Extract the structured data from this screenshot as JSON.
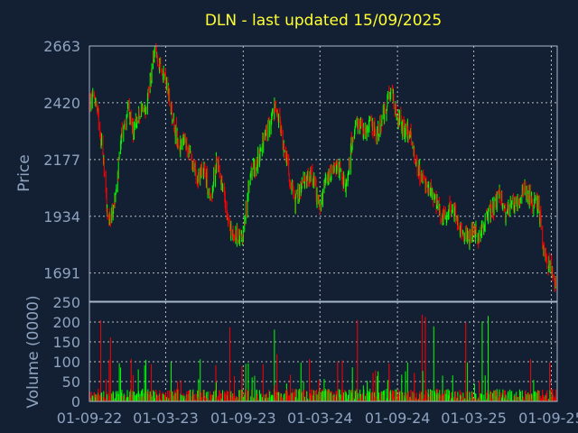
{
  "chart_data": [
    {
      "type": "candlestick",
      "title": "DLN - last updated 15/09/2025",
      "ylabel": "Price",
      "xlabel": "",
      "ylim": [
        1570,
        2663
      ],
      "yticks": [
        1691,
        1934,
        2177,
        2420,
        2663
      ],
      "xticks": [
        "01-09-22",
        "01-03-23",
        "01-09-23",
        "01-03-24",
        "01-09-24",
        "01-03-25",
        "01-09-25"
      ],
      "x_range": [
        "2022-09-01",
        "2025-09-15"
      ],
      "grid": true,
      "colors": {
        "up": "#00ff00",
        "down": "#ff0000",
        "grid": "#ffffff",
        "axis_text": "#8fa3bf",
        "title": "#ffff33",
        "background": "#132033"
      },
      "close_series": {
        "dates": [
          "2022-09-01",
          "2022-09-15",
          "2022-10-01",
          "2022-10-15",
          "2022-11-01",
          "2022-11-15",
          "2022-12-01",
          "2022-12-15",
          "2023-01-01",
          "2023-01-15",
          "2023-02-01",
          "2023-02-15",
          "2023-03-01",
          "2023-03-15",
          "2023-04-01",
          "2023-04-15",
          "2023-05-01",
          "2023-05-15",
          "2023-06-01",
          "2023-06-15",
          "2023-07-01",
          "2023-07-15",
          "2023-08-01",
          "2023-08-15",
          "2023-09-01",
          "2023-09-15",
          "2023-10-01",
          "2023-10-15",
          "2023-11-01",
          "2023-11-15",
          "2023-12-01",
          "2023-12-15",
          "2024-01-01",
          "2024-01-15",
          "2024-02-01",
          "2024-02-15",
          "2024-03-01",
          "2024-03-15",
          "2024-04-01",
          "2024-04-15",
          "2024-05-01",
          "2024-05-15",
          "2024-06-01",
          "2024-06-15",
          "2024-07-01",
          "2024-07-15",
          "2024-08-01",
          "2024-08-15",
          "2024-09-01",
          "2024-09-15",
          "2024-10-01",
          "2024-10-15",
          "2024-11-01",
          "2024-11-15",
          "2024-12-01",
          "2024-12-15",
          "2025-01-01",
          "2025-01-15",
          "2025-02-01",
          "2025-02-15",
          "2025-03-01",
          "2025-03-15",
          "2025-04-01",
          "2025-04-15",
          "2025-05-01",
          "2025-05-15",
          "2025-06-01",
          "2025-06-15",
          "2025-07-01",
          "2025-07-15",
          "2025-08-01",
          "2025-08-15",
          "2025-09-01",
          "2025-09-15"
        ],
        "close": [
          2420,
          2440,
          2250,
          1900,
          2000,
          2250,
          2400,
          2300,
          2380,
          2420,
          2620,
          2600,
          2520,
          2380,
          2230,
          2250,
          2180,
          2100,
          2150,
          2000,
          2180,
          2060,
          1870,
          1850,
          1860,
          2090,
          2150,
          2240,
          2320,
          2400,
          2290,
          2150,
          1990,
          2050,
          2110,
          2090,
          1960,
          2080,
          2120,
          2150,
          2040,
          2250,
          2330,
          2300,
          2330,
          2280,
          2380,
          2470,
          2360,
          2310,
          2290,
          2150,
          2090,
          2060,
          2000,
          1930,
          1960,
          1960,
          1870,
          1830,
          1880,
          1830,
          1950,
          1960,
          2030,
          1960,
          1990,
          1990,
          2060,
          2000,
          1990,
          1780,
          1710,
          1630
        ]
      },
      "volume": {
        "ylabel": "Volume (0000)",
        "ylim": [
          0,
          250
        ],
        "yticks": [
          0,
          50,
          100,
          150,
          200,
          250
        ]
      }
    }
  ]
}
